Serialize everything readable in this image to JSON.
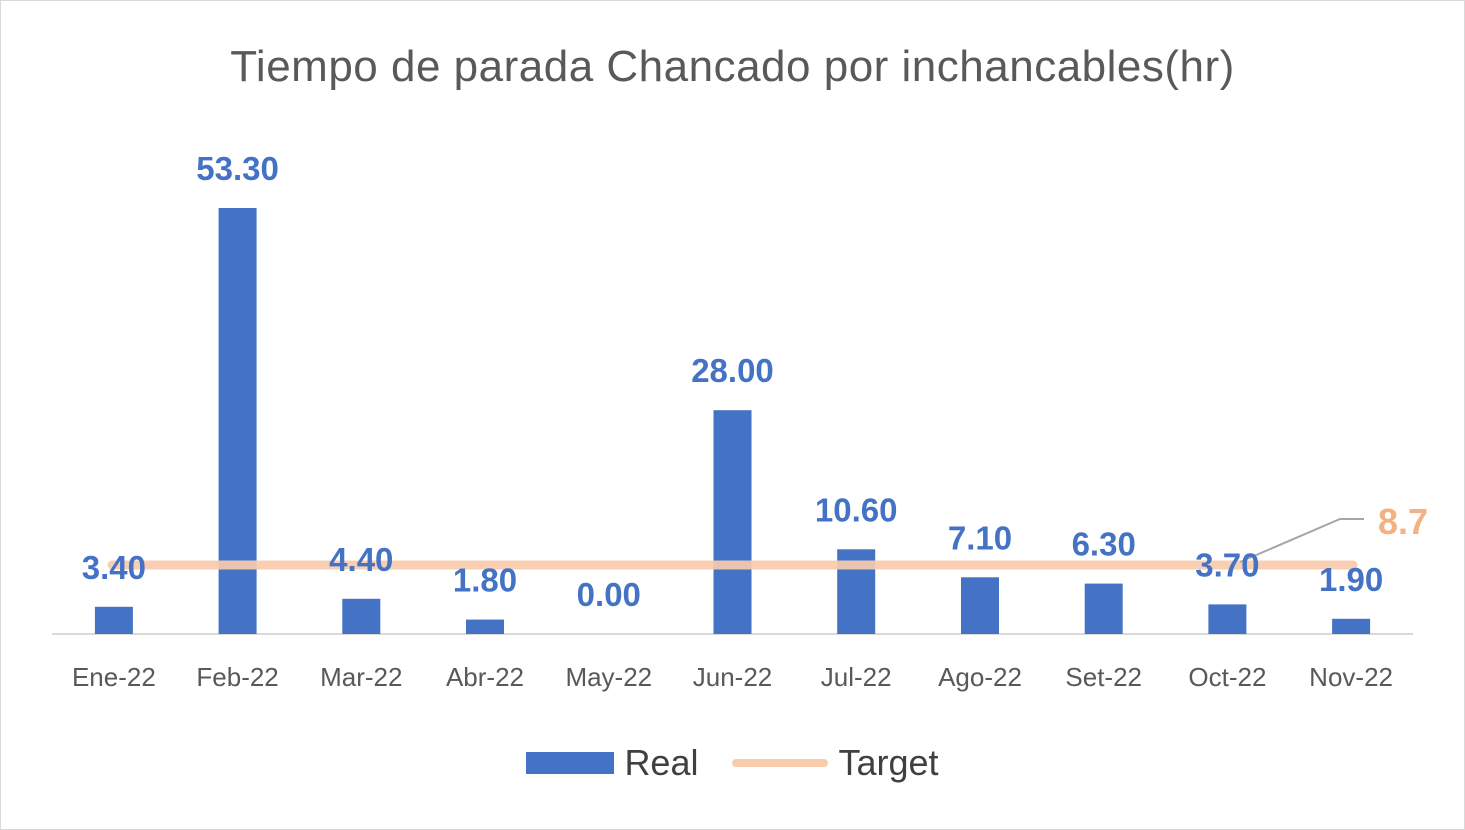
{
  "chart_data": {
    "type": "bar",
    "title": "Tiempo de parada Chancado por inchancables(hr)",
    "xlabel": "",
    "ylabel": "",
    "categories": [
      "Ene-22",
      "Feb-22",
      "Mar-22",
      "Abr-22",
      "May-22",
      "Jun-22",
      "Jul-22",
      "Ago-22",
      "Set-22",
      "Oct-22",
      "Nov-22"
    ],
    "series": [
      {
        "name": "Real",
        "type": "bar",
        "values": [
          3.4,
          53.3,
          4.4,
          1.8,
          0.0,
          28.0,
          10.6,
          7.1,
          6.3,
          3.7,
          1.9
        ],
        "labels": [
          "3.40",
          "53.30",
          "4.40",
          "1.80",
          "0.00",
          "28.00",
          "10.60",
          "7.10",
          "6.30",
          "3.70",
          "1.90"
        ],
        "color": "#4472c4"
      },
      {
        "name": "Target",
        "type": "line",
        "values": [
          8.7,
          8.7,
          8.7,
          8.7,
          8.7,
          8.7,
          8.7,
          8.7,
          8.7,
          8.7,
          8.7
        ],
        "label": "8.7",
        "color": "#f8cbad",
        "label_color": "#f4b183"
      }
    ],
    "ylim": [
      0,
      60
    ],
    "grid": false,
    "legend_position": "bottom",
    "colors": {
      "axis": "#d9d9d9",
      "tick_label": "#595959",
      "data_label": "#4472c4",
      "title": "#595959"
    }
  }
}
